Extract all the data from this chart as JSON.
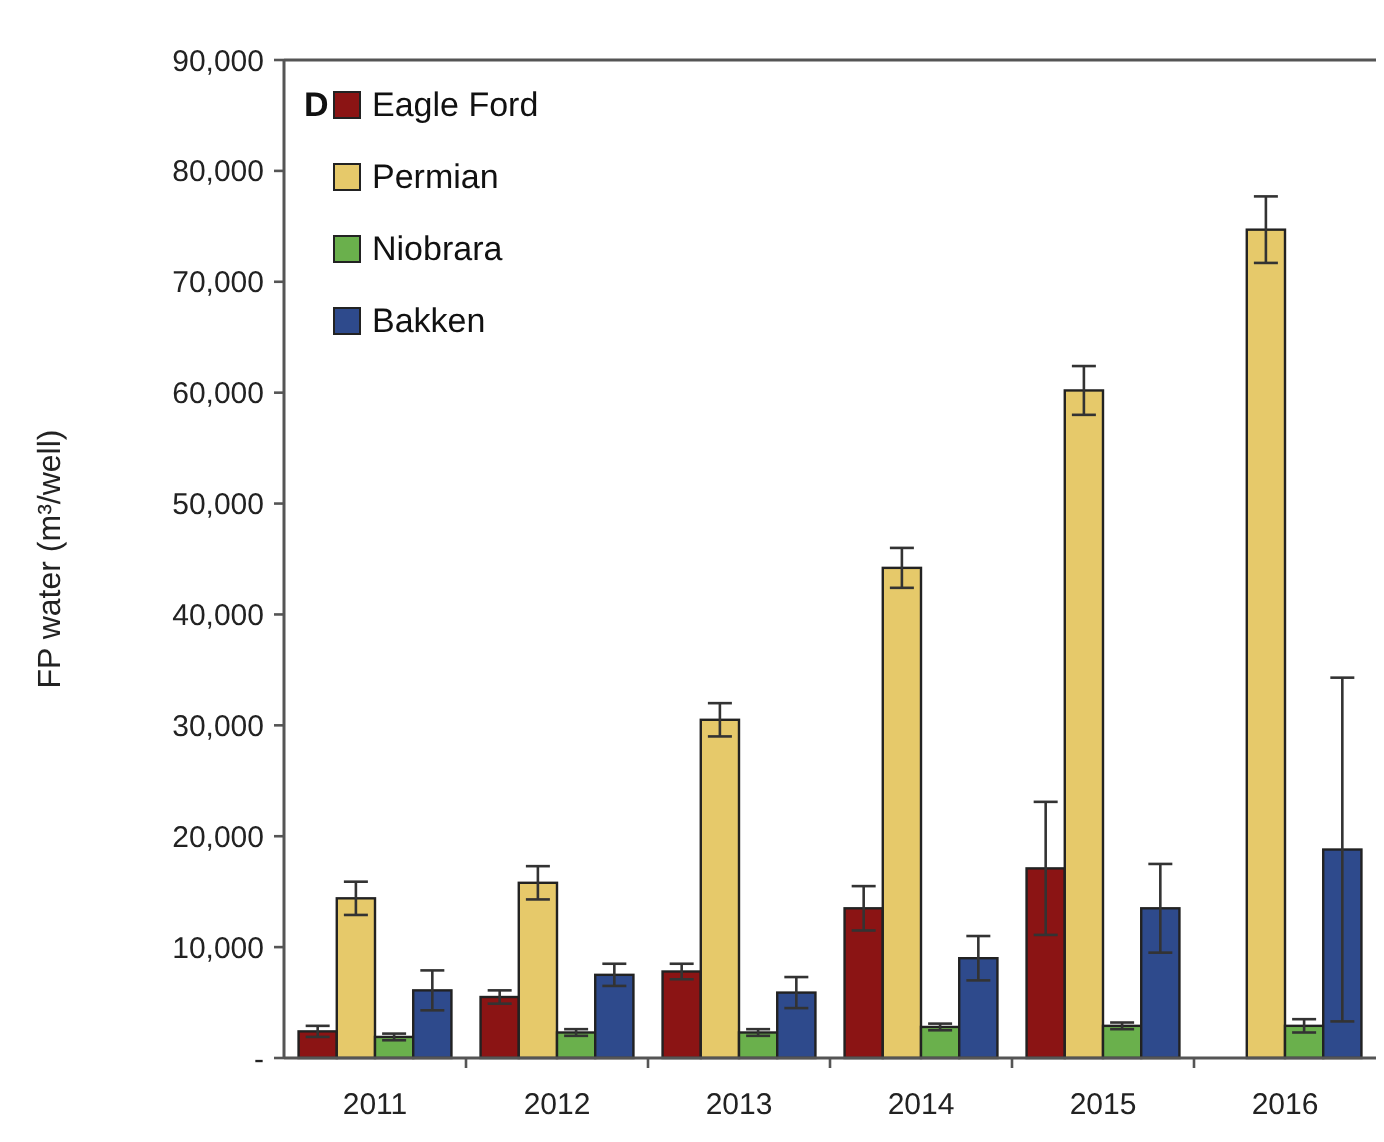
{
  "chart_data": {
    "type": "bar",
    "ylabel": "FP water (m³/well)",
    "annotations": [
      "D"
    ],
    "categories": [
      "2011",
      "2012",
      "2013",
      "2014",
      "2015",
      "2016"
    ],
    "series": [
      {
        "name": "Eagle Ford",
        "color": "#8b1414",
        "values": [
          2400,
          5500,
          7800,
          13500,
          17100,
          null
        ],
        "errors": [
          500,
          600,
          700,
          2000,
          6000,
          null
        ]
      },
      {
        "name": "Permian",
        "color": "#e6c96a",
        "values": [
          14400,
          15800,
          30500,
          44200,
          60200,
          74700
        ],
        "errors": [
          1500,
          1500,
          1500,
          1800,
          2200,
          3000
        ]
      },
      {
        "name": "Niobrara",
        "color": "#6ab04c",
        "values": [
          1900,
          2300,
          2300,
          2800,
          2900,
          2900
        ],
        "errors": [
          300,
          300,
          300,
          300,
          300,
          600
        ]
      },
      {
        "name": "Bakken",
        "color": "#2e4a8c",
        "values": [
          6100,
          7500,
          5900,
          9000,
          13500,
          18800
        ],
        "errors": [
          1800,
          1000,
          1400,
          2000,
          4000,
          15500
        ]
      }
    ],
    "ylim": [
      0,
      90000
    ],
    "yticks": [
      {
        "value": 0,
        "label": "-"
      },
      {
        "value": 10000,
        "label": "10,000"
      },
      {
        "value": 20000,
        "label": "20,000"
      },
      {
        "value": 30000,
        "label": "30,000"
      },
      {
        "value": 40000,
        "label": "40,000"
      },
      {
        "value": 50000,
        "label": "50,000"
      },
      {
        "value": 60000,
        "label": "60,000"
      },
      {
        "value": 70000,
        "label": "70,000"
      },
      {
        "value": 80000,
        "label": "80,000"
      },
      {
        "value": 90000,
        "label": "90,000"
      }
    ],
    "grid": false,
    "legend": "top left"
  }
}
